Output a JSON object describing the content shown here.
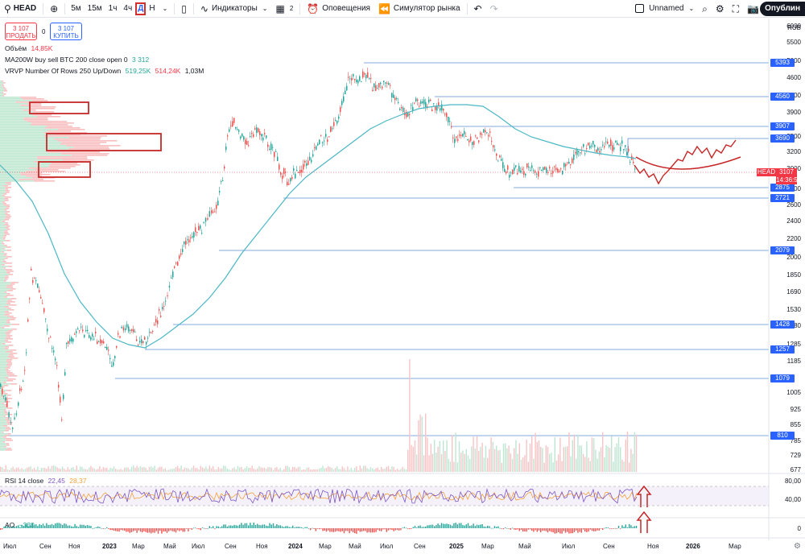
{
  "toolbar": {
    "symbol": "HEAD",
    "intervals": [
      "5м",
      "15м",
      "1ч",
      "4ч",
      "Д",
      "Н"
    ],
    "active_interval": "Д",
    "indicators_label": "Индикаторы",
    "layouts_count": "2",
    "alerts_label": "Оповещения",
    "simulator_label": "Симулятор рынка",
    "layout_name": "Unnamed",
    "publish_label": "Опублин"
  },
  "trade": {
    "sell_price": "3 107",
    "sell_label": "ПРОДАТЬ",
    "spread": "0",
    "buy_price": "3 107",
    "buy_label": "КУПИТЬ"
  },
  "legends": {
    "volume_label": "Объём",
    "volume_value": "14,85K",
    "ma_label": "MA200W buy sell BTC 200 close open 0",
    "ma_value": "3 312",
    "vrvp_label": "VRVP Number Of Rows 250 Up/Down",
    "vrvp_up": "519,25K",
    "vrvp_down": "514,24K",
    "vrvp_total": "1,03M",
    "rsi_label": "RSI 14 close",
    "rsi_v1": "22,45",
    "rsi_v2": "28,37",
    "ao_label": "AO",
    "ao_value": "−330"
  },
  "price_axis": {
    "currency": "RUB",
    "labels": [
      "6000",
      "5500",
      "5000",
      "4600",
      "4200",
      "3900",
      "3500",
      "3200",
      "3000",
      "2800",
      "2600",
      "2400",
      "2200",
      "2000",
      "1850",
      "1690",
      "1530",
      "1380",
      "1285",
      "1185",
      "1005",
      "925",
      "855",
      "785",
      "729",
      "677"
    ],
    "tags": [
      "5393",
      "4560",
      "3907",
      "3690",
      "2875",
      "2721",
      "2079",
      "1428",
      "1257",
      "1079",
      "810"
    ],
    "current_symbol": "HEAD",
    "current_price": "3107",
    "countdown": "14:36:53"
  },
  "rsi_axis": [
    "80,00",
    "40,00"
  ],
  "ao_axis": [
    "0"
  ],
  "time_axis": [
    "Июл",
    "Сен",
    "Ноя",
    "2023",
    "Мар",
    "Май",
    "Июл",
    "Сен",
    "Ноя",
    "2024",
    "Мар",
    "Май",
    "Июл",
    "Сен",
    "2025",
    "Мар",
    "Май",
    "Июл",
    "Сен",
    "Ноя",
    "2026",
    "Мар"
  ],
  "colors": {
    "up": "#26a69a",
    "down": "#ef5350",
    "ma": "#4bb8c4",
    "level": "#5b8fd4",
    "annotation": "#c62828",
    "rsi": "#7e57c2"
  },
  "icons": [
    "search-icon",
    "plus-icon",
    "candles-icon",
    "indicators-icon",
    "layout-icon",
    "alarm-icon",
    "rewind-icon",
    "undo-icon",
    "redo-icon",
    "zoom-icon",
    "settings-icon",
    "fullscreen-icon",
    "camera-icon",
    "gear-icon"
  ]
}
